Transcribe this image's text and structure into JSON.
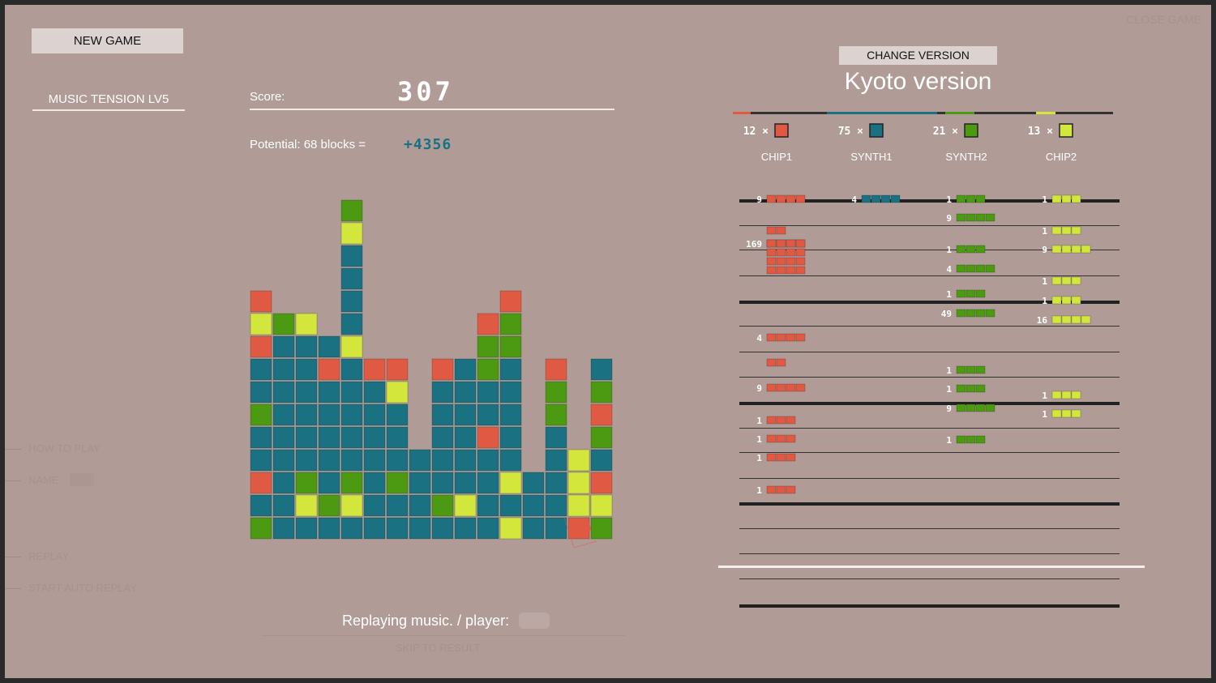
{
  "header": {
    "new_game_label": "NEW GAME",
    "mode_label": "MUSIC TENSION LV5",
    "close_label": "CLOSE GAME"
  },
  "score": {
    "label": "Score:",
    "value": "307",
    "potential_label": "Potential: 68 blocks =",
    "potential_value": "+4356"
  },
  "side_menu": {
    "how_to_play": "HOW TO PLAY",
    "name": "NAME",
    "replay": "REPLAY",
    "auto_replay": "START AUTO REPLAY"
  },
  "status": {
    "replaying": "Replaying music. / player:",
    "skip": "SKIP TO RESULT"
  },
  "version": {
    "change_label": "CHANGE VERSION",
    "title": "Kyoto version",
    "instruments": [
      {
        "name": "CHIP1",
        "count": "12",
        "color": "#e05a43"
      },
      {
        "name": "SYNTH1",
        "count": "75",
        "color": "#1a7181"
      },
      {
        "name": "SYNTH2",
        "count": "21",
        "color": "#4c9a12"
      },
      {
        "name": "CHIP2",
        "count": "13",
        "color": "#d2e63c"
      }
    ]
  },
  "colors": {
    "red": "#e05a43",
    "teal": "#1a7181",
    "green": "#4c9a12",
    "yellow": "#d2e63c",
    "background": "#b09b97"
  },
  "board": {
    "columns": [
      "TTTYR",
      "TTTTTTTTYR",
      "TYTGTTTGTGTTTT",
      "TTTGTTYTTTYTGRRYTR",
      "TTGTTYTTT",
      "TTTTTTTTTTTRYGG",
      "TTGTYGTGTTGTRTYR",
      "TRTGTTTT",
      "TTTTTTTTTTTTTTTTGGTGTTT"
    ]
  },
  "piece_rows": {
    "chip1": [
      {
        "count": "9",
        "cells": 4
      },
      {
        "count": "",
        "cells": 2
      },
      {
        "count": "169",
        "cells": 4
      },
      {
        "count": "4",
        "cells": 4
      },
      {
        "count": "",
        "cells": 2
      },
      {
        "count": "9",
        "cells": 4
      },
      {
        "count": "1",
        "cells": 3
      },
      {
        "count": "1",
        "cells": 3
      },
      {
        "count": "1",
        "cells": 3
      },
      {
        "count": "1",
        "cells": 3
      }
    ],
    "synth1": [
      {
        "count": "4",
        "cells": 4
      }
    ],
    "synth2": [
      {
        "count": "1",
        "cells": 3
      },
      {
        "count": "9",
        "cells": 4
      },
      {
        "count": "1",
        "cells": 3
      },
      {
        "count": "4",
        "cells": 4
      },
      {
        "count": "1",
        "cells": 3
      },
      {
        "count": "49",
        "cells": 4
      },
      {
        "count": "1",
        "cells": 3
      },
      {
        "count": "1",
        "cells": 3
      },
      {
        "count": "9",
        "cells": 4
      },
      {
        "count": "1",
        "cells": 3
      }
    ],
    "chip2": [
      {
        "count": "1",
        "cells": 3
      },
      {
        "count": "1",
        "cells": 3
      },
      {
        "count": "9",
        "cells": 4
      },
      {
        "count": "1",
        "cells": 3
      },
      {
        "count": "1",
        "cells": 3
      },
      {
        "count": "16",
        "cells": 4
      },
      {
        "count": "1",
        "cells": 3
      },
      {
        "count": "1",
        "cells": 3
      }
    ]
  }
}
